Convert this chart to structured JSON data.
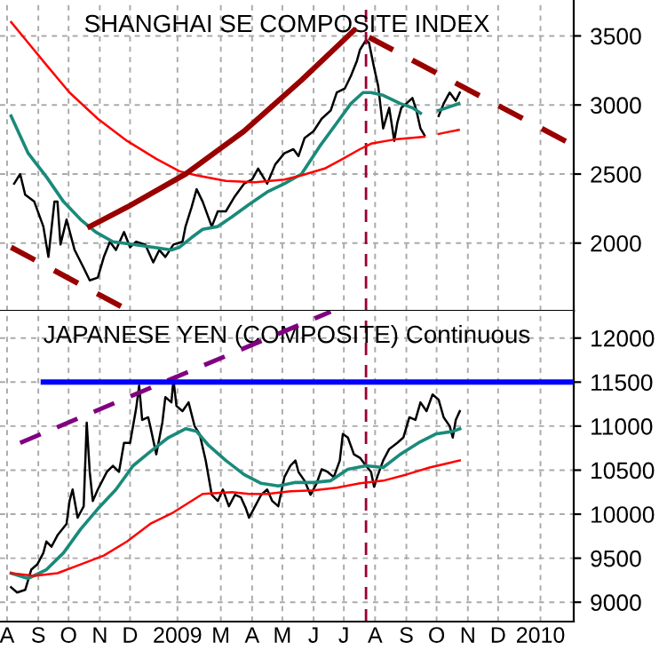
{
  "chart_data": [
    {
      "type": "line",
      "title": "SHANGHAI SE COMPOSITE INDEX",
      "xlim": [
        "2008-08-08",
        "2010-02-28"
      ],
      "ylim": [
        1510,
        3760
      ],
      "yticks": [
        2000,
        2500,
        3000,
        3500
      ],
      "xticks": [
        {
          "value": "2008-08-15",
          "label": null
        },
        {
          "value": "2008-09-15",
          "label": null
        },
        {
          "value": "2008-10-15",
          "label": null
        },
        {
          "value": "2008-11-15",
          "label": null
        },
        {
          "value": "2008-12-15",
          "label": null
        },
        {
          "value": "2009-01-31",
          "label": null
        },
        {
          "value": "2009-03-15",
          "label": null
        },
        {
          "value": "2009-04-15",
          "label": null
        },
        {
          "value": "2009-05-15",
          "label": null
        },
        {
          "value": "2009-06-15",
          "label": null
        },
        {
          "value": "2009-07-15",
          "label": null
        },
        {
          "value": "2009-08-15",
          "label": null
        },
        {
          "value": "2009-09-15",
          "label": null
        },
        {
          "value": "2009-10-15",
          "label": null
        },
        {
          "value": "2009-11-15",
          "label": null
        },
        {
          "value": "2009-12-15",
          "label": null
        },
        {
          "value": "2010-01-26",
          "label": null
        }
      ],
      "tick_labels": "y",
      "grid": true,
      "ref_lines": [
        {
          "axis": "x",
          "value": "2009-08-06",
          "color": "#990033",
          "line_style": "dashed"
        }
      ],
      "series": [
        {
          "color": "#000000",
          "x": [
            "2008-08-22",
            "2008-08-28",
            "2008-09-02",
            "2008-09-11",
            "2008-09-20",
            "2008-09-25",
            "2008-10-01",
            "2008-10-04",
            "2008-10-07",
            "2008-10-13",
            "2008-10-21",
            "2008-10-30",
            "2008-11-05",
            "2008-11-13",
            "2008-11-19",
            "2008-11-25",
            "2008-12-01",
            "2008-12-09",
            "2008-12-15",
            "2008-12-21",
            "2008-12-30",
            "2009-01-07",
            "2009-01-13",
            "2009-01-19",
            "2009-01-27",
            "2009-02-05",
            "2009-02-08",
            "2009-02-14",
            "2009-02-19",
            "2009-02-25",
            "2009-03-06",
            "2009-03-12",
            "2009-03-20",
            "2009-03-29",
            "2009-04-07",
            "2009-04-15",
            "2009-04-21",
            "2009-04-30",
            "2009-05-08",
            "2009-05-17",
            "2009-05-26",
            "2009-05-31",
            "2009-06-06",
            "2009-06-15",
            "2009-06-23",
            "2009-07-02",
            "2009-07-08",
            "2009-07-16",
            "2009-07-22",
            "2009-07-28",
            "2009-07-31",
            "2009-08-06",
            "2009-08-09",
            "2009-08-14",
            "2009-08-18",
            "2009-08-23",
            "2009-08-29",
            "2009-09-03",
            "2009-09-06",
            "2009-09-10",
            "2009-09-15",
            "2009-09-21",
            "2009-09-25",
            "2009-09-29",
            "2009-10-03",
            "2009-10-10",
            "2009-10-17",
            "2009-10-22",
            "2009-10-28",
            "2009-11-03",
            "2009-11-07"
          ],
          "values": [
            2430,
            2500,
            2350,
            2300,
            2120,
            1900,
            2300,
            2300,
            1990,
            2170,
            1950,
            1820,
            1730,
            1750,
            1900,
            2010,
            1950,
            2080,
            1970,
            2010,
            1990,
            1860,
            1950,
            1900,
            1990,
            2010,
            2120,
            2260,
            2390,
            2300,
            2120,
            2230,
            2230,
            2340,
            2430,
            2460,
            2540,
            2430,
            2570,
            2650,
            2680,
            2630,
            2760,
            2810,
            2900,
            2960,
            3090,
            3120,
            3210,
            3320,
            3400,
            3470,
            3450,
            3270,
            3140,
            2830,
            2980,
            2740,
            2870,
            2980,
            3010,
            3050,
            2960,
            2830,
            2780,
            null,
            2920,
            3010,
            3090,
            3030,
            3090
          ]
        },
        {
          "color": "#1a8a7a",
          "x": [
            "2008-08-19",
            "2008-09-05",
            "2008-09-23",
            "2008-10-10",
            "2008-10-27",
            "2008-11-11",
            "2008-11-28",
            "2008-12-18",
            "2009-01-07",
            "2009-01-25",
            "2009-02-02",
            "2009-02-14",
            "2009-02-25",
            "2009-03-12",
            "2009-03-26",
            "2009-04-12",
            "2009-04-30",
            "2009-05-17",
            "2009-06-03",
            "2009-06-21",
            "2009-07-08",
            "2009-07-22",
            "2009-08-03",
            "2009-08-11",
            "2009-08-23",
            "2009-09-09",
            "2009-09-21",
            "2009-09-29"
          ],
          "values": [
            2920,
            2650,
            2480,
            2300,
            2170,
            2080,
            2010,
            1990,
            1970,
            1950,
            1970,
            2040,
            2100,
            2120,
            2190,
            2280,
            2370,
            2430,
            2500,
            2700,
            2870,
            3010,
            3090,
            3090,
            3070,
            3010,
            2980,
            2940
          ]
        },
        {
          "color": "#1a8a7a",
          "x": [
            "2009-10-17",
            "2009-10-25",
            "2009-11-06"
          ],
          "values": [
            2960,
            2980,
            3010
          ]
        },
        {
          "color": "#ff0000",
          "x": [
            "2008-08-19",
            "2008-09-05",
            "2008-09-23",
            "2008-10-16",
            "2008-11-13",
            "2008-12-12",
            "2009-01-10",
            "2009-02-02",
            "2009-02-19",
            "2009-03-20",
            "2009-04-18",
            "2009-05-17",
            "2009-06-03",
            "2009-06-26",
            "2009-07-14",
            "2009-07-31",
            "2009-08-11",
            "2009-09-03",
            "2009-10-03",
            "2009-10-10",
            "2009-10-17",
            "2009-11-06"
          ],
          "values": [
            3600,
            3450,
            3290,
            3090,
            2900,
            2740,
            2610,
            2520,
            2490,
            2450,
            2440,
            2460,
            2490,
            2540,
            2610,
            2680,
            2720,
            2750,
            2770,
            null,
            2790,
            2820
          ]
        },
        {
          "color": "#990000",
          "x": [
            "2008-11-05",
            "2008-12-12",
            "2009-02-08",
            "2009-04-07",
            "2009-06-03",
            "2009-07-25"
          ],
          "values": [
            2120,
            2260,
            2500,
            2810,
            3180,
            3540
          ]
        },
        {
          "color": "#990000",
          "line_style": "dashed",
          "x": [
            "2009-08-09",
            "2010-02-22"
          ],
          "values": [
            3490,
            2730
          ]
        },
        {
          "color": "#990000",
          "line_style": "dashed",
          "x": [
            "2008-08-19",
            "2008-12-09"
          ],
          "values": [
            1970,
            1530
          ]
        }
      ]
    },
    {
      "type": "line",
      "title": "JAPANESE YEN (COMPOSITE) Continuous",
      "xlim": [
        "2008-08-08",
        "2010-02-28"
      ],
      "ylim": [
        8780,
        12310
      ],
      "yticks": [
        9000,
        9500,
        10000,
        10500,
        11000,
        11500,
        12000
      ],
      "xticks": [
        {
          "value": "2008-08-15",
          "label": "A"
        },
        {
          "value": "2008-09-15",
          "label": "S"
        },
        {
          "value": "2008-10-15",
          "label": "O"
        },
        {
          "value": "2008-11-15",
          "label": "N"
        },
        {
          "value": "2008-12-15",
          "label": "D"
        },
        {
          "value": "2009-01-31",
          "label": "2009"
        },
        {
          "value": "2009-03-15",
          "label": "M"
        },
        {
          "value": "2009-04-15",
          "label": "A"
        },
        {
          "value": "2009-05-15",
          "label": "M"
        },
        {
          "value": "2009-06-15",
          "label": "J"
        },
        {
          "value": "2009-07-15",
          "label": "J"
        },
        {
          "value": "2009-08-15",
          "label": "A"
        },
        {
          "value": "2009-09-15",
          "label": "S"
        },
        {
          "value": "2009-10-15",
          "label": "O"
        },
        {
          "value": "2009-11-15",
          "label": "N"
        },
        {
          "value": "2009-12-15",
          "label": "D"
        },
        {
          "value": "2010-01-26",
          "label": "2010"
        }
      ],
      "grid": true,
      "ref_lines": [
        {
          "axis": "x",
          "value": "2009-08-06",
          "color": "#990033",
          "line_style": "dashed"
        }
      ],
      "series": [
        {
          "color": "#000000",
          "x": [
            "2008-08-19",
            "2008-08-25",
            "2008-09-02",
            "2008-09-08",
            "2008-09-14",
            "2008-09-20",
            "2008-09-23",
            "2008-09-28",
            "2008-10-04",
            "2008-10-13",
            "2008-10-16",
            "2008-10-19",
            "2008-10-24",
            "2008-10-30",
            "2008-11-02",
            "2008-11-05",
            "2008-11-08",
            "2008-11-13",
            "2008-11-22",
            "2008-11-28",
            "2008-12-04",
            "2008-12-09",
            "2008-12-15",
            "2008-12-21",
            "2008-12-24",
            "2008-12-27",
            "2009-01-02",
            "2009-01-04",
            "2009-01-10",
            "2009-01-16",
            "2009-01-19",
            "2009-01-25",
            "2009-01-27",
            "2009-01-30",
            "2009-02-05",
            "2009-02-11",
            "2009-02-17",
            "2009-02-22",
            "2009-02-28",
            "2009-03-06",
            "2009-03-12",
            "2009-03-17",
            "2009-03-23",
            "2009-03-29",
            "2009-04-04",
            "2009-04-09",
            "2009-04-12",
            "2009-04-18",
            "2009-04-24",
            "2009-04-30",
            "2009-05-05",
            "2009-05-11",
            "2009-05-17",
            "2009-05-23",
            "2009-05-28",
            "2009-05-31",
            "2009-06-06",
            "2009-06-12",
            "2009-06-18",
            "2009-06-23",
            "2009-06-29",
            "2009-07-05",
            "2009-07-11",
            "2009-07-14",
            "2009-07-19",
            "2009-07-25",
            "2009-07-31",
            "2009-08-06",
            "2009-08-11",
            "2009-08-14",
            "2009-08-17",
            "2009-08-23",
            "2009-08-29",
            "2009-09-06",
            "2009-09-12",
            "2009-09-18",
            "2009-09-24",
            "2009-09-29",
            "2009-10-05",
            "2009-10-11",
            "2009-10-17",
            "2009-10-22",
            "2009-10-28",
            "2009-10-31",
            "2009-11-03",
            "2009-11-07"
          ],
          "values": [
            9170,
            9110,
            9140,
            9370,
            9430,
            9560,
            9690,
            9630,
            9760,
            9890,
            10150,
            10280,
            9960,
            10090,
            11040,
            10480,
            10150,
            10280,
            10480,
            10550,
            10480,
            10810,
            10810,
            11200,
            11460,
            11070,
            11100,
            11000,
            10680,
            11040,
            11330,
            11270,
            11530,
            11230,
            11170,
            11270,
            11000,
            10910,
            10610,
            10220,
            10150,
            10280,
            10090,
            10220,
            10190,
            10060,
            9960,
            10090,
            10220,
            10280,
            10150,
            10090,
            10420,
            10550,
            10610,
            10480,
            10380,
            10220,
            10350,
            10510,
            10480,
            10420,
            10610,
            10910,
            10870,
            10680,
            10640,
            10550,
            10480,
            10310,
            10420,
            10610,
            10740,
            10810,
            10870,
            11100,
            11070,
            11270,
            11170,
            11360,
            11300,
            11100,
            11000,
            10870,
            11070,
            11170
          ]
        },
        {
          "color": "#1a8a7a",
          "x": [
            "2008-08-19",
            "2008-09-05",
            "2008-09-23",
            "2008-10-10",
            "2008-10-27",
            "2008-11-13",
            "2008-12-01",
            "2008-12-18",
            "2009-01-04",
            "2009-01-22",
            "2009-02-08",
            "2009-02-19",
            "2009-03-03",
            "2009-03-20",
            "2009-04-07",
            "2009-04-24",
            "2009-05-11",
            "2009-05-28",
            "2009-06-15",
            "2009-07-02",
            "2009-07-19",
            "2009-08-06",
            "2009-08-23",
            "2009-09-09",
            "2009-09-27",
            "2009-10-14",
            "2009-10-31",
            "2009-11-07"
          ],
          "values": [
            9330,
            9270,
            9370,
            9560,
            9830,
            10060,
            10280,
            10550,
            10710,
            10870,
            10970,
            10940,
            10780,
            10610,
            10450,
            10350,
            10320,
            10360,
            10360,
            10380,
            10510,
            10550,
            10530,
            10680,
            10810,
            10910,
            10940,
            10970
          ]
        },
        {
          "color": "#ff0000",
          "x": [
            "2008-08-19",
            "2008-09-11",
            "2008-10-04",
            "2008-10-27",
            "2008-11-19",
            "2008-12-12",
            "2009-01-04",
            "2009-01-27",
            "2009-02-25",
            "2009-03-26",
            "2009-04-12",
            "2009-04-30",
            "2009-05-23",
            "2009-06-15",
            "2009-07-08",
            "2009-07-31",
            "2009-08-23",
            "2009-09-15",
            "2009-10-08",
            "2009-11-07"
          ],
          "values": [
            9330,
            9300,
            9330,
            9430,
            9530,
            9690,
            9890,
            10020,
            10230,
            10250,
            10230,
            10230,
            10260,
            10270,
            10300,
            10350,
            10380,
            10450,
            10530,
            10610
          ]
        },
        {
          "color": "#800080",
          "line_style": "dashed",
          "x": [
            "2008-08-28",
            "2009-07-02"
          ],
          "values": [
            10810,
            12300
          ]
        },
        {
          "color": "#0000ff",
          "x": [
            "2008-09-20",
            "2010-02-28"
          ],
          "values": [
            11500,
            11500
          ]
        }
      ]
    }
  ]
}
